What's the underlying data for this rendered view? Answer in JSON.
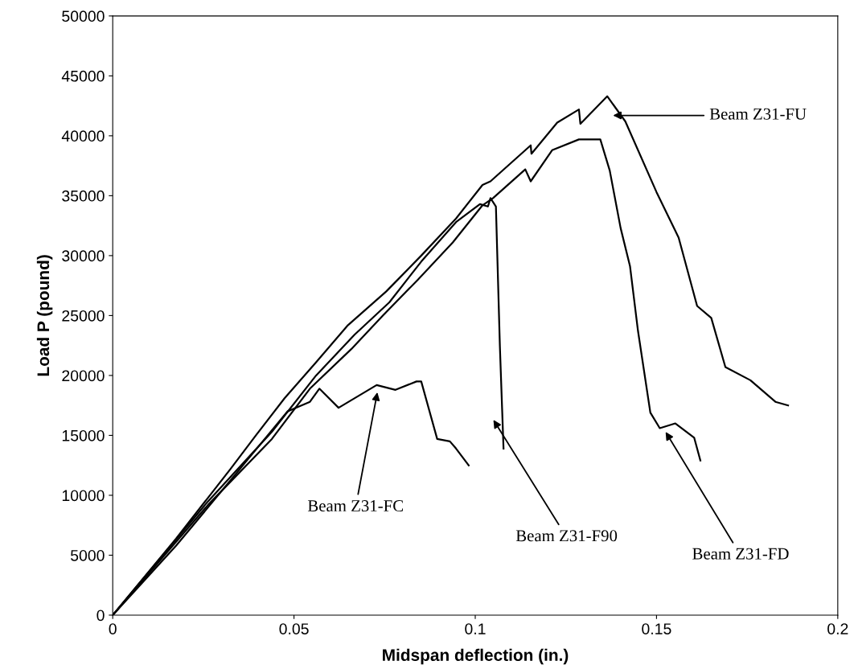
{
  "chart_data": {
    "type": "line",
    "xlabel": "Midspan deflection (in.)",
    "ylabel": "Load P (pound)",
    "xlim": [
      0,
      0.2
    ],
    "xticks": [
      0,
      0.05,
      {
        "value": 0.1,
        "label": "0.1"
      },
      0.15,
      {
        "value": 0.2,
        "label": "0.2"
      }
    ],
    "ylim": [
      0,
      50000
    ],
    "yticks": [
      0,
      5000,
      10000,
      15000,
      20000,
      25000,
      30000,
      35000,
      40000,
      45000,
      50000
    ],
    "grid": false,
    "marker": "none",
    "line_style": "solid",
    "series": [
      {
        "color": "#000000",
        "x": [
          0,
          0.0175,
          0.0325,
          0.0395,
          0.0474,
          0.0561,
          0.0649,
          0.0754,
          0.0851,
          0.0947,
          0.102,
          0.1042,
          0.1153,
          0.1155,
          0.1226,
          0.1286,
          0.129,
          0.1364,
          0.1414,
          0.15,
          0.1561,
          0.1612,
          0.1651,
          0.169,
          0.1759,
          0.1828,
          0.1863
        ],
        "values": [
          0,
          6400,
          12200,
          15000,
          18100,
          21100,
          24200,
          27000,
          30000,
          33100,
          35900,
          36200,
          39200,
          38500,
          41100,
          42200,
          41000,
          43300,
          41200,
          35300,
          31500,
          25800,
          24800,
          20700,
          19600,
          17800,
          17500
        ]
      },
      {
        "color": "#000000",
        "x": [
          0,
          0.0263,
          0.0439,
          0.0544,
          0.0658,
          0.0745,
          0.0842,
          0.0938,
          0.102,
          0.1049,
          0.1138,
          0.1153,
          0.1212,
          0.1286,
          0.1325,
          0.1345,
          0.1371,
          0.1401,
          0.1427,
          0.1449,
          0.1483,
          0.1509,
          0.1552,
          0.1604,
          0.1621
        ],
        "values": [
          0,
          9200,
          14700,
          18900,
          22200,
          25000,
          28000,
          31100,
          34200,
          34800,
          37200,
          36200,
          38800,
          39700,
          39700,
          39700,
          37100,
          32300,
          29100,
          23700,
          16900,
          15600,
          16000,
          14800,
          12900
        ]
      },
      {
        "color": "#000000",
        "x": [
          0,
          0.0263,
          0.0439,
          0.0561,
          0.0667,
          0.0763,
          0.0851,
          0.0947,
          0.1013,
          0.1035,
          0.1042,
          0.1057,
          0.1068,
          0.1078
        ],
        "values": [
          0,
          9500,
          15300,
          20000,
          23400,
          26100,
          29500,
          32800,
          34300,
          34100,
          34800,
          34100,
          22400,
          13900
        ]
      },
      {
        "color": "#000000",
        "x": [
          0,
          0.0175,
          0.0351,
          0.0482,
          0.0544,
          0.057,
          0.0623,
          0.0728,
          0.078,
          0.0838,
          0.0851,
          0.0895,
          0.093,
          0.0947,
          0.0982
        ],
        "values": [
          0,
          5800,
          12200,
          17000,
          17800,
          18900,
          17300,
          19200,
          18800,
          19500,
          19500,
          14700,
          14500,
          13900,
          12500
        ]
      }
    ],
    "annotations": [
      "Beam Z31-FU",
      "Beam Z31-FC",
      "Beam Z31-F90",
      "Beam Z31-FD"
    ]
  }
}
